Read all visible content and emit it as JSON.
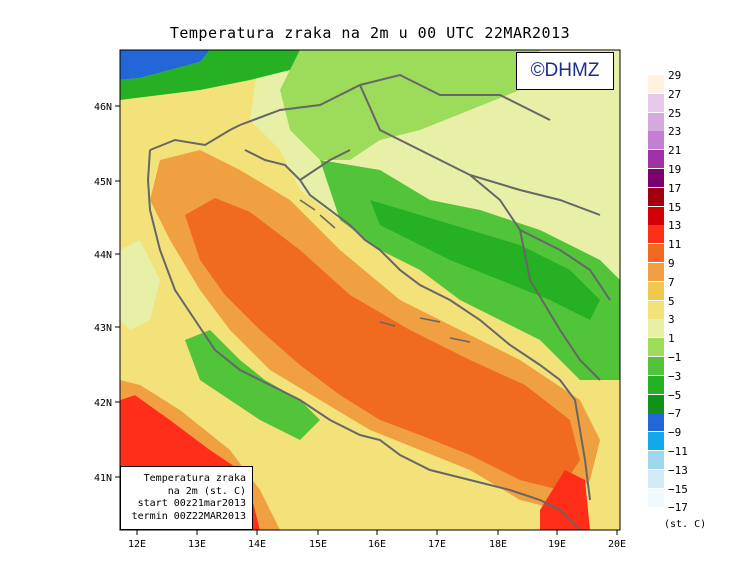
{
  "title": "Temperatura zraka na 2m u 00 UTC 22MAR2013",
  "logo": "©DHMZ",
  "info": {
    "line1": "Temperatura zraka",
    "line2": "na 2m (st. C)",
    "line3": "start 00z21mar2013",
    "line4": "termin 00Z22MAR2013"
  },
  "lat_labels": [
    "46N",
    "45N",
    "44N",
    "43N",
    "42N",
    "41N"
  ],
  "lon_labels": [
    "12E",
    "13E",
    "14E",
    "15E",
    "16E",
    "17E",
    "18E",
    "19E",
    "20E"
  ],
  "legend": {
    "unit": "(st. C)",
    "labels": [
      "29",
      "27",
      "25",
      "23",
      "21",
      "19",
      "17",
      "15",
      "13",
      "11",
      "9",
      "7",
      "5",
      "3",
      "1",
      "−1",
      "−3",
      "−5",
      "−7",
      "−9",
      "−11",
      "−13",
      "−15",
      "−17"
    ],
    "colors": [
      "#fff2e0",
      "#e8c8e8",
      "#d6a8e0",
      "#c47ed4",
      "#a030a8",
      "#7a0070",
      "#a00010",
      "#d40008",
      "#ff2e18",
      "#f06a20",
      "#f0a040",
      "#f0c850",
      "#f3e27a",
      "#e8f0a8",
      "#9cdc5a",
      "#52c43a",
      "#26b024",
      "#12901a",
      "#2266d8",
      "#10a8e8",
      "#9ed8ea",
      "#d0ecf4",
      "#f0fafe",
      "#ffffff"
    ]
  },
  "colors": {
    "sea_warm": "#f06a20",
    "land_green": "#52c43a",
    "dark_green": "#26b024",
    "yellow": "#f3e27a",
    "coast": "#666666"
  }
}
